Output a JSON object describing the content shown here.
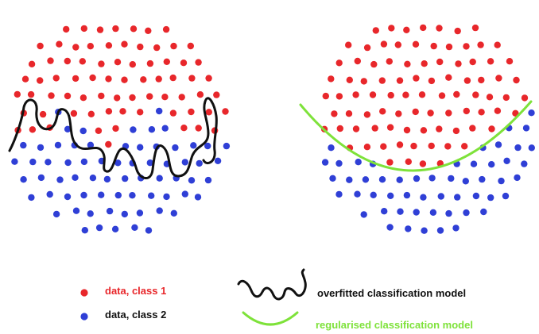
{
  "legend": {
    "class1": {
      "label": "data, class 1",
      "color": "#e8272b"
    },
    "class2": {
      "label": "data, class 2",
      "color": "#2f3fd6"
    },
    "overfitted": {
      "label": "overfitted classification model",
      "color": "#111111",
      "text_color": "#111111"
    },
    "regularised": {
      "label": "regularised classification model",
      "color": "#7ee23a",
      "text_color": "#7ee23a"
    }
  },
  "panels": [
    {
      "name": "overfitted-panel",
      "boundary": "overfitted"
    },
    {
      "name": "regularised-panel",
      "boundary": "regularised"
    }
  ]
}
